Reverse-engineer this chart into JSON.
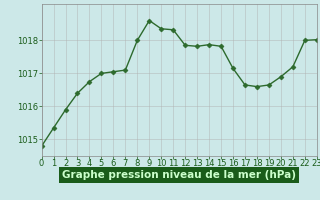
{
  "x": [
    0,
    1,
    2,
    3,
    4,
    5,
    6,
    7,
    8,
    9,
    10,
    11,
    12,
    13,
    14,
    15,
    16,
    17,
    18,
    19,
    20,
    21,
    22,
    23
  ],
  "y": [
    1014.8,
    1015.35,
    1015.9,
    1016.4,
    1016.75,
    1017.0,
    1017.05,
    1017.1,
    1018.0,
    1018.6,
    1018.35,
    1018.32,
    1017.85,
    1017.82,
    1017.87,
    1017.82,
    1017.15,
    1016.65,
    1016.6,
    1016.65,
    1016.9,
    1017.2,
    1018.0,
    1018.02
  ],
  "xlim": [
    0,
    23
  ],
  "ylim": [
    1014.5,
    1019.1
  ],
  "yticks": [
    1015,
    1016,
    1017,
    1018
  ],
  "xticks": [
    0,
    1,
    2,
    3,
    4,
    5,
    6,
    7,
    8,
    9,
    10,
    11,
    12,
    13,
    14,
    15,
    16,
    17,
    18,
    19,
    20,
    21,
    22,
    23
  ],
  "line_color": "#2d6a2d",
  "marker": "D",
  "marker_size": 2.5,
  "bg_color": "#cce8e8",
  "plot_bg_color": "#cce8e8",
  "grid_color": "#b0b0b0",
  "tick_label_color": "#1a5c1a",
  "xlabel": "Graphe pression niveau de la mer (hPa)",
  "xlabel_color": "#ccffcc",
  "xlabel_bg_color": "#1a5c1a",
  "xlabel_fontsize": 7.5,
  "tick_fontsize": 6.0,
  "linewidth": 1.0
}
